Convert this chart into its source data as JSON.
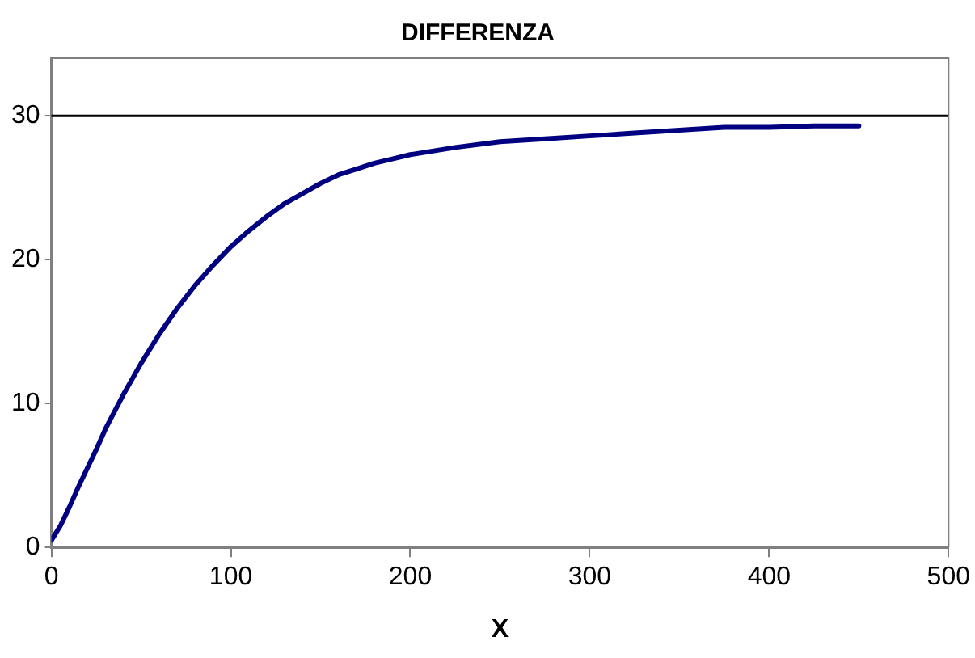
{
  "chart_data": {
    "type": "line",
    "title": "DIFFERENZA",
    "xlabel": "X",
    "x": [
      0,
      5,
      10,
      15,
      20,
      25,
      30,
      40,
      50,
      60,
      70,
      80,
      90,
      100,
      110,
      120,
      130,
      140,
      150,
      160,
      170,
      180,
      190,
      200,
      225,
      250,
      275,
      300,
      325,
      350,
      375,
      400,
      425,
      450
    ],
    "series": [
      {
        "color": "#000080",
        "values": [
          0.5,
          1.5,
          2.8,
          4.2,
          5.5,
          6.8,
          8.2,
          10.6,
          12.8,
          14.8,
          16.6,
          18.2,
          19.6,
          20.9,
          22.0,
          23.0,
          23.9,
          24.6,
          25.3,
          25.9,
          26.3,
          26.7,
          27.0,
          27.3,
          27.8,
          28.2,
          28.4,
          28.6,
          28.8,
          29.0,
          29.2,
          29.2,
          29.3,
          29.3
        ]
      }
    ],
    "xlim": [
      0,
      500
    ],
    "xticks": [
      0,
      100,
      200,
      300,
      400,
      500
    ],
    "ylim": [
      0,
      34
    ],
    "yticks": [
      0,
      10,
      20,
      30
    ],
    "ref_lines": [
      {
        "axis": "y",
        "value": 30,
        "color": "#000000"
      }
    ],
    "grid": false,
    "legend": false,
    "marker": "none",
    "line_style": "solid"
  }
}
